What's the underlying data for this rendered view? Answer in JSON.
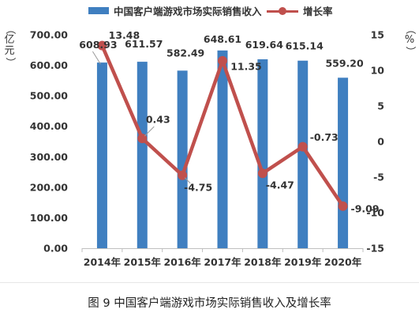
{
  "chart_data": {
    "type": "bar",
    "title": "",
    "categories": [
      "2014年",
      "2015年",
      "2016年",
      "2017年",
      "2018年",
      "2019年",
      "2020年"
    ],
    "series": [
      {
        "name": "中国客户端游戏市场实际销售收入",
        "type": "bar",
        "axis": "left",
        "color": "#3f7fc0",
        "values": [
          608.93,
          611.57,
          582.49,
          648.61,
          619.64,
          615.14,
          559.2
        ],
        "labels": [
          "608.93",
          "611.57",
          "582.49",
          "648.61",
          "619.64",
          "615.14",
          "559.20"
        ]
      },
      {
        "name": "增长率",
        "type": "line",
        "axis": "right",
        "color": "#c0504d",
        "values": [
          13.48,
          0.43,
          -4.75,
          11.35,
          -4.47,
          -0.73,
          -9.09
        ],
        "labels": [
          "13.48",
          "0.43",
          "-4.75",
          "11.35",
          "-4.47",
          "-0.73",
          "-9.09"
        ]
      }
    ],
    "left_axis": {
      "label": "亿元",
      "range": [
        0,
        700
      ],
      "ticks": [
        "0.00",
        "100.00",
        "200.00",
        "300.00",
        "400.00",
        "500.00",
        "600.00",
        "700.00"
      ]
    },
    "right_axis": {
      "label": "%",
      "range": [
        -15,
        15
      ],
      "ticks": [
        "-15",
        "-10",
        "-5",
        "0",
        "5",
        "10",
        "15"
      ]
    },
    "grid": false,
    "legend": "top"
  },
  "legend": {
    "bar_label": "中国客户端游戏市场实际销售收入",
    "line_label": "增长率"
  },
  "left_unit": {
    "open": "（",
    "c1": "亿",
    "c2": "元",
    "close": "）"
  },
  "right_unit": {
    "open": "（",
    "c1": "%",
    "close": "）"
  },
  "caption": "图 9  中国客户端游戏市场实际销售收入及增长率"
}
